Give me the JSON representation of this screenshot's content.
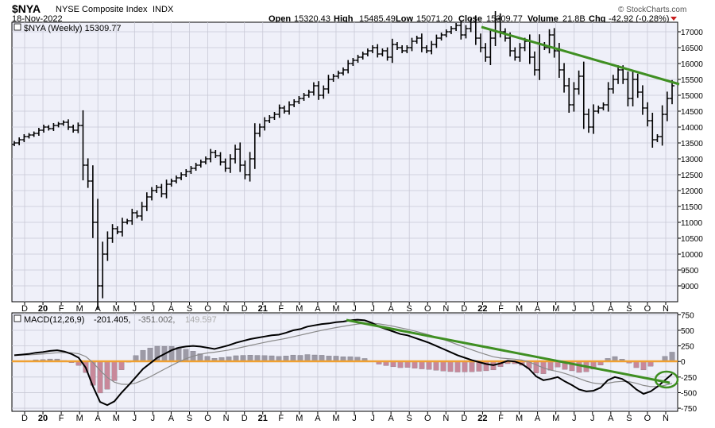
{
  "header": {
    "symbol": "$NYA",
    "name": "NYSE Composite Index",
    "exchange": "INDX",
    "date": "18-Nov-2022",
    "brand": "© StockCharts.com",
    "open_label": "Open",
    "open_value": "15320.43",
    "high_label": "High",
    "high_value": "15485.49",
    "low_label": "Low",
    "low_value": "15071.20",
    "close_label": "Close",
    "close_value": "15309.77",
    "volume_label": "Volume",
    "volume_value": "21.8B",
    "chg_label": "Chg",
    "chg_value": "-42.92 (-0.28%)"
  },
  "price_panel": {
    "legend": "$NYA (Weekly) 15309.77",
    "legend_color": "#000000"
  },
  "macd_panel": {
    "legend_name": "MACD(12,26,9)",
    "legend_macd": "-201.405,",
    "legend_signal": "-351.002,",
    "legend_hist": "149.597"
  },
  "x_labels": [
    "D",
    "20",
    "F",
    "M",
    "A",
    "M",
    "J",
    "J",
    "A",
    "S",
    "O",
    "N",
    "D",
    "21",
    "F",
    "M",
    "A",
    "M",
    "J",
    "J",
    "A",
    "S",
    "O",
    "N",
    "D",
    "22",
    "F",
    "M",
    "A",
    "M",
    "J",
    "J",
    "A",
    "S",
    "O",
    "N"
  ],
  "colors": {
    "panel_bg": "#eff0f9",
    "trendline": "#3f8f22",
    "zero_line": "#f0a030",
    "hist_pos": "#9c9aa6",
    "hist_neg": "#c8889a",
    "signal": "#8a8a8a",
    "down_arrow": "#c81e1e"
  },
  "chart_data": [
    {
      "type": "ohlc",
      "title": "$NYA NYSE Composite Index (Weekly)",
      "y_ticks": [
        9000,
        9500,
        10000,
        10500,
        11000,
        11500,
        12000,
        12500,
        13000,
        13500,
        14000,
        14500,
        15000,
        15500,
        16000,
        16500,
        17000
      ],
      "ylim": [
        8500,
        17300
      ],
      "period": "Nov 2019 – Nov 2022",
      "weekly_close_path": [
        13500,
        13600,
        13700,
        13750,
        13800,
        13900,
        14000,
        13950,
        14050,
        14100,
        14150,
        14000,
        13900,
        14050,
        12800,
        12300,
        11000,
        9000,
        10000,
        10500,
        10800,
        10700,
        11000,
        11050,
        11300,
        11200,
        11500,
        11800,
        12000,
        12100,
        11900,
        12200,
        12300,
        12400,
        12500,
        12600,
        12700,
        12800,
        12900,
        13000,
        13200,
        13100,
        12900,
        12700,
        13000,
        13300,
        12800,
        12500,
        13000,
        13800,
        14000,
        14200,
        14300,
        14400,
        14600,
        14500,
        14700,
        14800,
        14900,
        15000,
        15100,
        15300,
        15000,
        15200,
        15500,
        15600,
        15700,
        15800,
        16000,
        16100,
        16200,
        16300,
        16400,
        16500,
        16300,
        16400,
        16200,
        16600,
        16500,
        16400,
        16500,
        16700,
        16800,
        16500,
        16400,
        16600,
        16800,
        16900,
        17000,
        17100,
        17200,
        16900,
        17100,
        17300,
        16800,
        16500,
        16200,
        16800,
        17400,
        17000,
        16800,
        16400,
        16200,
        16500,
        16700,
        16200,
        15800,
        16600,
        16500,
        16900,
        16400,
        15800,
        15300,
        14700,
        15200,
        15600,
        14400,
        14000,
        14500,
        14600,
        14700,
        15200,
        15500,
        15800,
        15500,
        14900,
        15500,
        15100,
        14600,
        14200,
        13600,
        13700,
        14400,
        14900,
        15300
      ]
    },
    {
      "type": "macd",
      "title": "MACD(12,26,9)",
      "y_ticks": [
        -750,
        -500,
        -250,
        0,
        250,
        500,
        750
      ],
      "ylim": [
        -800,
        780
      ],
      "latest": {
        "macd": -201.405,
        "signal": -351.002,
        "histogram": 149.597
      },
      "macd_path": [
        100,
        110,
        120,
        140,
        150,
        170,
        180,
        160,
        120,
        60,
        -100,
        -400,
        -650,
        -700,
        -640,
        -500,
        -380,
        -250,
        -120,
        -30,
        60,
        120,
        180,
        220,
        240,
        250,
        240,
        220,
        200,
        230,
        260,
        300,
        330,
        360,
        380,
        400,
        420,
        430,
        460,
        500,
        520,
        560,
        580,
        600,
        610,
        630,
        640,
        660,
        670,
        660,
        620,
        560,
        520,
        480,
        440,
        420,
        380,
        340,
        300,
        250,
        200,
        150,
        100,
        60,
        20,
        -10,
        -40,
        -60,
        -30,
        10,
        0,
        -40,
        -120,
        -240,
        -300,
        -280,
        -250,
        -320,
        -380,
        -450,
        -480,
        -470,
        -420,
        -300,
        -250,
        -280,
        -350,
        -450,
        -520,
        -480,
        -400,
        -300,
        -201
      ]
    }
  ]
}
